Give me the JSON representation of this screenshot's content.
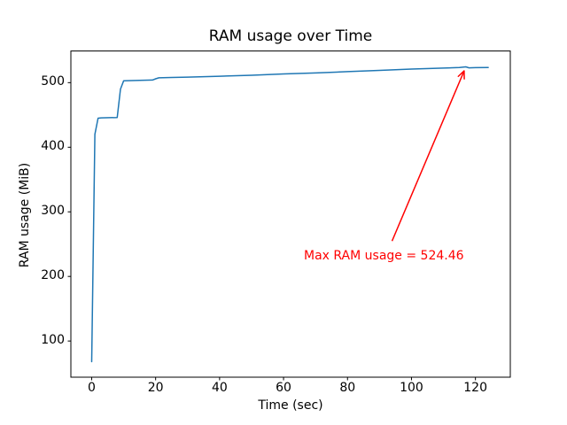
{
  "chart_data": {
    "type": "line",
    "title": "RAM usage over Time",
    "xlabel": "Time (sec)",
    "ylabel": "RAM usage (MiB)",
    "x_tick_labels": [
      "0",
      "20",
      "40",
      "60",
      "80",
      "100",
      "120"
    ],
    "x_tick_values": [
      0,
      20,
      40,
      60,
      80,
      100,
      120
    ],
    "y_tick_labels": [
      "100",
      "200",
      "300",
      "400",
      "500"
    ],
    "y_tick_values": [
      100,
      200,
      300,
      400,
      500
    ],
    "xlim": [
      -6.5,
      130.9
    ],
    "ylim": [
      44,
      549
    ],
    "grid": false,
    "legend": null,
    "background_color": "#ffffff",
    "spine_color": "#000000",
    "series": [
      {
        "name": "RAM usage",
        "color": "#1f77b4",
        "x": [
          0,
          1,
          2,
          3,
          8,
          9,
          10,
          15,
          19,
          20,
          21,
          25,
          30,
          40,
          50,
          60,
          70,
          80,
          90,
          100,
          110,
          115,
          117,
          118,
          120,
          124
        ],
        "y": [
          68,
          420,
          445,
          445.5,
          446,
          490,
          503,
          503.5,
          504,
          506,
          507.5,
          508,
          508.5,
          510,
          511.5,
          513.5,
          515,
          517,
          519,
          521,
          522.5,
          523.5,
          524.46,
          523,
          523.2,
          523.4
        ]
      }
    ],
    "annotation": {
      "text": "Max RAM usage = 524.46",
      "color": "#ff0000",
      "point": [
        117,
        524.46
      ],
      "text_pos": [
        66.5,
        226
      ],
      "max_value": "524.46"
    }
  }
}
